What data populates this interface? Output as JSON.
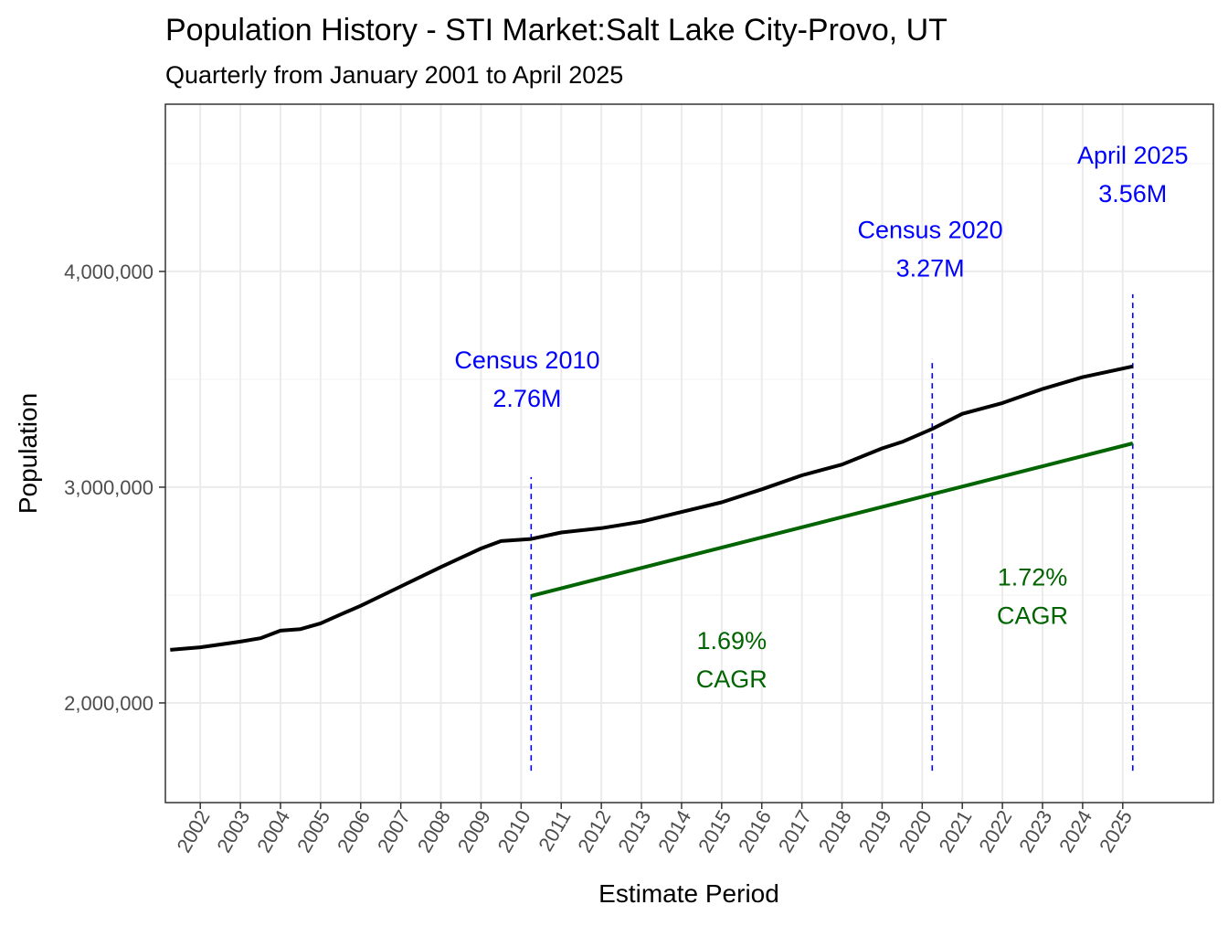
{
  "chart_data": {
    "type": "line",
    "title": "Population History - STI Market:Salt Lake City-Provo, UT",
    "subtitle": "Quarterly from January 2001 to April 2025",
    "xlabel": "Estimate Period",
    "ylabel": "Population",
    "xlim": [
      2001.13,
      2027.26
    ],
    "ylim": [
      1538000,
      4775000
    ],
    "grid": true,
    "x_ticks": [
      2002,
      2003,
      2004,
      2005,
      2006,
      2007,
      2008,
      2009,
      2010,
      2011,
      2012,
      2013,
      2014,
      2015,
      2016,
      2017,
      2018,
      2019,
      2020,
      2021,
      2022,
      2023,
      2024,
      2025
    ],
    "x_tick_labels": [
      "2002",
      "2003",
      "2004",
      "2005",
      "2006",
      "2007",
      "2008",
      "2009",
      "2010",
      "2011",
      "2012",
      "2013",
      "2014",
      "2015",
      "2016",
      "2017",
      "2018",
      "2019",
      "2020",
      "2021",
      "2022",
      "2023",
      "2024",
      "2025"
    ],
    "y_ticks": [
      2000000,
      3000000,
      4000000
    ],
    "y_tick_labels": [
      "2,000,000",
      "3,000,000",
      "4,000,000"
    ],
    "y_minor_ticks": [
      2500000,
      3500000,
      4500000
    ],
    "series": [
      {
        "color": "#000000",
        "x": [
          2001.25,
          2002,
          2003,
          2003.5,
          2004,
          2004.5,
          2005,
          2005.5,
          2006,
          2007,
          2008,
          2009,
          2009.5,
          2010.25,
          2011,
          2012,
          2013,
          2014,
          2015,
          2016,
          2017,
          2017.5,
          2018,
          2019,
          2019.5,
          2020.25,
          2021,
          2022,
          2023,
          2024,
          2025.25
        ],
        "y": [
          2246000,
          2258000,
          2284000,
          2300000,
          2335000,
          2342000,
          2369000,
          2410000,
          2450000,
          2540000,
          2630000,
          2716000,
          2750000,
          2760000,
          2790000,
          2810000,
          2840000,
          2885000,
          2930000,
          2990000,
          3055000,
          3080000,
          3105000,
          3180000,
          3210000,
          3270000,
          3340000,
          3390000,
          3455000,
          3510000,
          3560000
        ]
      },
      {
        "color": "#006400",
        "x": [
          2010.25,
          2025.25
        ],
        "y": [
          2496000,
          3203000
        ]
      }
    ],
    "vlines": [
      {
        "x": 2010.25,
        "y": [
          1686000,
          3047000
        ],
        "color": "#0000FF"
      },
      {
        "x": 2020.25,
        "y": [
          1686000,
          3597000
        ],
        "color": "#0000FF"
      },
      {
        "x": 2025.25,
        "y": [
          1686000,
          3894000
        ],
        "color": "#0000FF"
      }
    ],
    "annotations": [
      {
        "lines": [
          "Census 2010",
          "2.76M"
        ],
        "x": 2010.15,
        "y": 3550000,
        "color": "#0000FF"
      },
      {
        "lines": [
          "Census 2020",
          "3.27M"
        ],
        "x": 2020.2,
        "y": 4155000,
        "color": "#0000FF"
      },
      {
        "lines": [
          "April 2025",
          "3.56M"
        ],
        "x": 2025.25,
        "y": 4500000,
        "color": "#0000FF"
      },
      {
        "lines": [
          "1.69%",
          "CAGR"
        ],
        "x": 2015.25,
        "y": 2250000,
        "color": "#006400"
      },
      {
        "lines": [
          "1.72%",
          "CAGR"
        ],
        "x": 2022.75,
        "y": 2545000,
        "color": "#006400"
      }
    ]
  }
}
